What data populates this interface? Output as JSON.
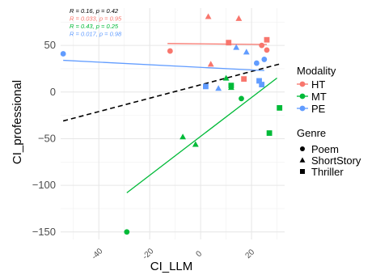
{
  "chart_data": {
    "type": "scatter",
    "xlabel": "CI_LLM",
    "ylabel": "CI_professional",
    "xlim": [
      -55,
      33
    ],
    "ylim": [
      -158,
      90
    ],
    "x_ticks": [
      -40,
      -20,
      0,
      20
    ],
    "x_tick_labels": [
      "-40",
      "-20",
      "0",
      "20"
    ],
    "y_ticks": [
      -150,
      -100,
      -50,
      0,
      50
    ],
    "y_tick_labels": [
      "−150",
      "−100",
      "−50",
      "0",
      "50"
    ],
    "grid": true,
    "colors": {
      "HT": "#F8766D",
      "MT": "#00BA38",
      "PE": "#619CFF"
    },
    "stats": [
      {
        "group": "all",
        "text": "R = 0.16, p = 0.42",
        "color": "#000000"
      },
      {
        "group": "HT",
        "text": "R = 0.033, p = 0.95",
        "color": "#F8766D"
      },
      {
        "group": "MT",
        "text": "R = 0.43, p = 0.25",
        "color": "#00BA38"
      },
      {
        "group": "PE",
        "text": "R = 0.017, p = 0.98",
        "color": "#619CFF"
      }
    ],
    "legend": {
      "placement": "right",
      "modality_title": "Modality",
      "modality": [
        {
          "key": "HT",
          "label": "HT"
        },
        {
          "key": "MT",
          "label": "MT"
        },
        {
          "key": "PE",
          "label": "PE"
        }
      ],
      "genre_title": "Genre",
      "genre": [
        {
          "key": "circle",
          "label": "Poem"
        },
        {
          "key": "triangle",
          "label": "ShortStory"
        },
        {
          "key": "square",
          "label": "Thriller"
        }
      ]
    },
    "fit_lines": [
      {
        "group": "all",
        "color": "#000000",
        "dashed": true,
        "x": [
          -54,
          31
        ],
        "y": [
          -31,
          30
        ]
      },
      {
        "group": "HT",
        "color": "#F8766D",
        "dashed": false,
        "x": [
          -13,
          26
        ],
        "y": [
          52,
          51
        ]
      },
      {
        "group": "MT",
        "color": "#00BA38",
        "dashed": false,
        "x": [
          -29,
          30
        ],
        "y": [
          -108,
          15
        ]
      },
      {
        "group": "PE",
        "color": "#619CFF",
        "dashed": false,
        "x": [
          -54,
          25
        ],
        "y": [
          34,
          23
        ]
      }
    ],
    "points": [
      {
        "modality": "HT",
        "genre": "circle",
        "x": -12,
        "y": 44
      },
      {
        "modality": "HT",
        "genre": "circle",
        "x": 24,
        "y": 50
      },
      {
        "modality": "HT",
        "genre": "circle",
        "x": 26,
        "y": 45
      },
      {
        "modality": "HT",
        "genre": "triangle",
        "x": 3,
        "y": 81
      },
      {
        "modality": "HT",
        "genre": "triangle",
        "x": 15,
        "y": 79
      },
      {
        "modality": "HT",
        "genre": "triangle",
        "x": 4,
        "y": 30
      },
      {
        "modality": "HT",
        "genre": "square",
        "x": 11,
        "y": 53
      },
      {
        "modality": "HT",
        "genre": "square",
        "x": 26,
        "y": 56
      },
      {
        "modality": "HT",
        "genre": "square",
        "x": 17,
        "y": 14
      },
      {
        "modality": "MT",
        "genre": "circle",
        "x": -29,
        "y": -150
      },
      {
        "modality": "MT",
        "genre": "circle",
        "x": 16,
        "y": -7
      },
      {
        "modality": "MT",
        "genre": "triangle",
        "x": -7,
        "y": -48
      },
      {
        "modality": "MT",
        "genre": "triangle",
        "x": -2,
        "y": -56
      },
      {
        "modality": "MT",
        "genre": "triangle",
        "x": 10,
        "y": 15
      },
      {
        "modality": "MT",
        "genre": "triangle",
        "x": 12,
        "y": 5
      },
      {
        "modality": "MT",
        "genre": "square",
        "x": 12,
        "y": 7
      },
      {
        "modality": "MT",
        "genre": "square",
        "x": 27,
        "y": -44
      },
      {
        "modality": "MT",
        "genre": "square",
        "x": 31,
        "y": -17
      },
      {
        "modality": "PE",
        "genre": "circle",
        "x": -54,
        "y": 41
      },
      {
        "modality": "PE",
        "genre": "circle",
        "x": 22,
        "y": 31
      },
      {
        "modality": "PE",
        "genre": "circle",
        "x": 25,
        "y": 35
      },
      {
        "modality": "PE",
        "genre": "triangle",
        "x": 7,
        "y": 4
      },
      {
        "modality": "PE",
        "genre": "triangle",
        "x": 14,
        "y": 48
      },
      {
        "modality": "PE",
        "genre": "triangle",
        "x": 18,
        "y": 43
      },
      {
        "modality": "PE",
        "genre": "square",
        "x": 2,
        "y": 6
      },
      {
        "modality": "PE",
        "genre": "square",
        "x": 23,
        "y": 12
      },
      {
        "modality": "PE",
        "genre": "square",
        "x": 24,
        "y": 8
      }
    ]
  }
}
